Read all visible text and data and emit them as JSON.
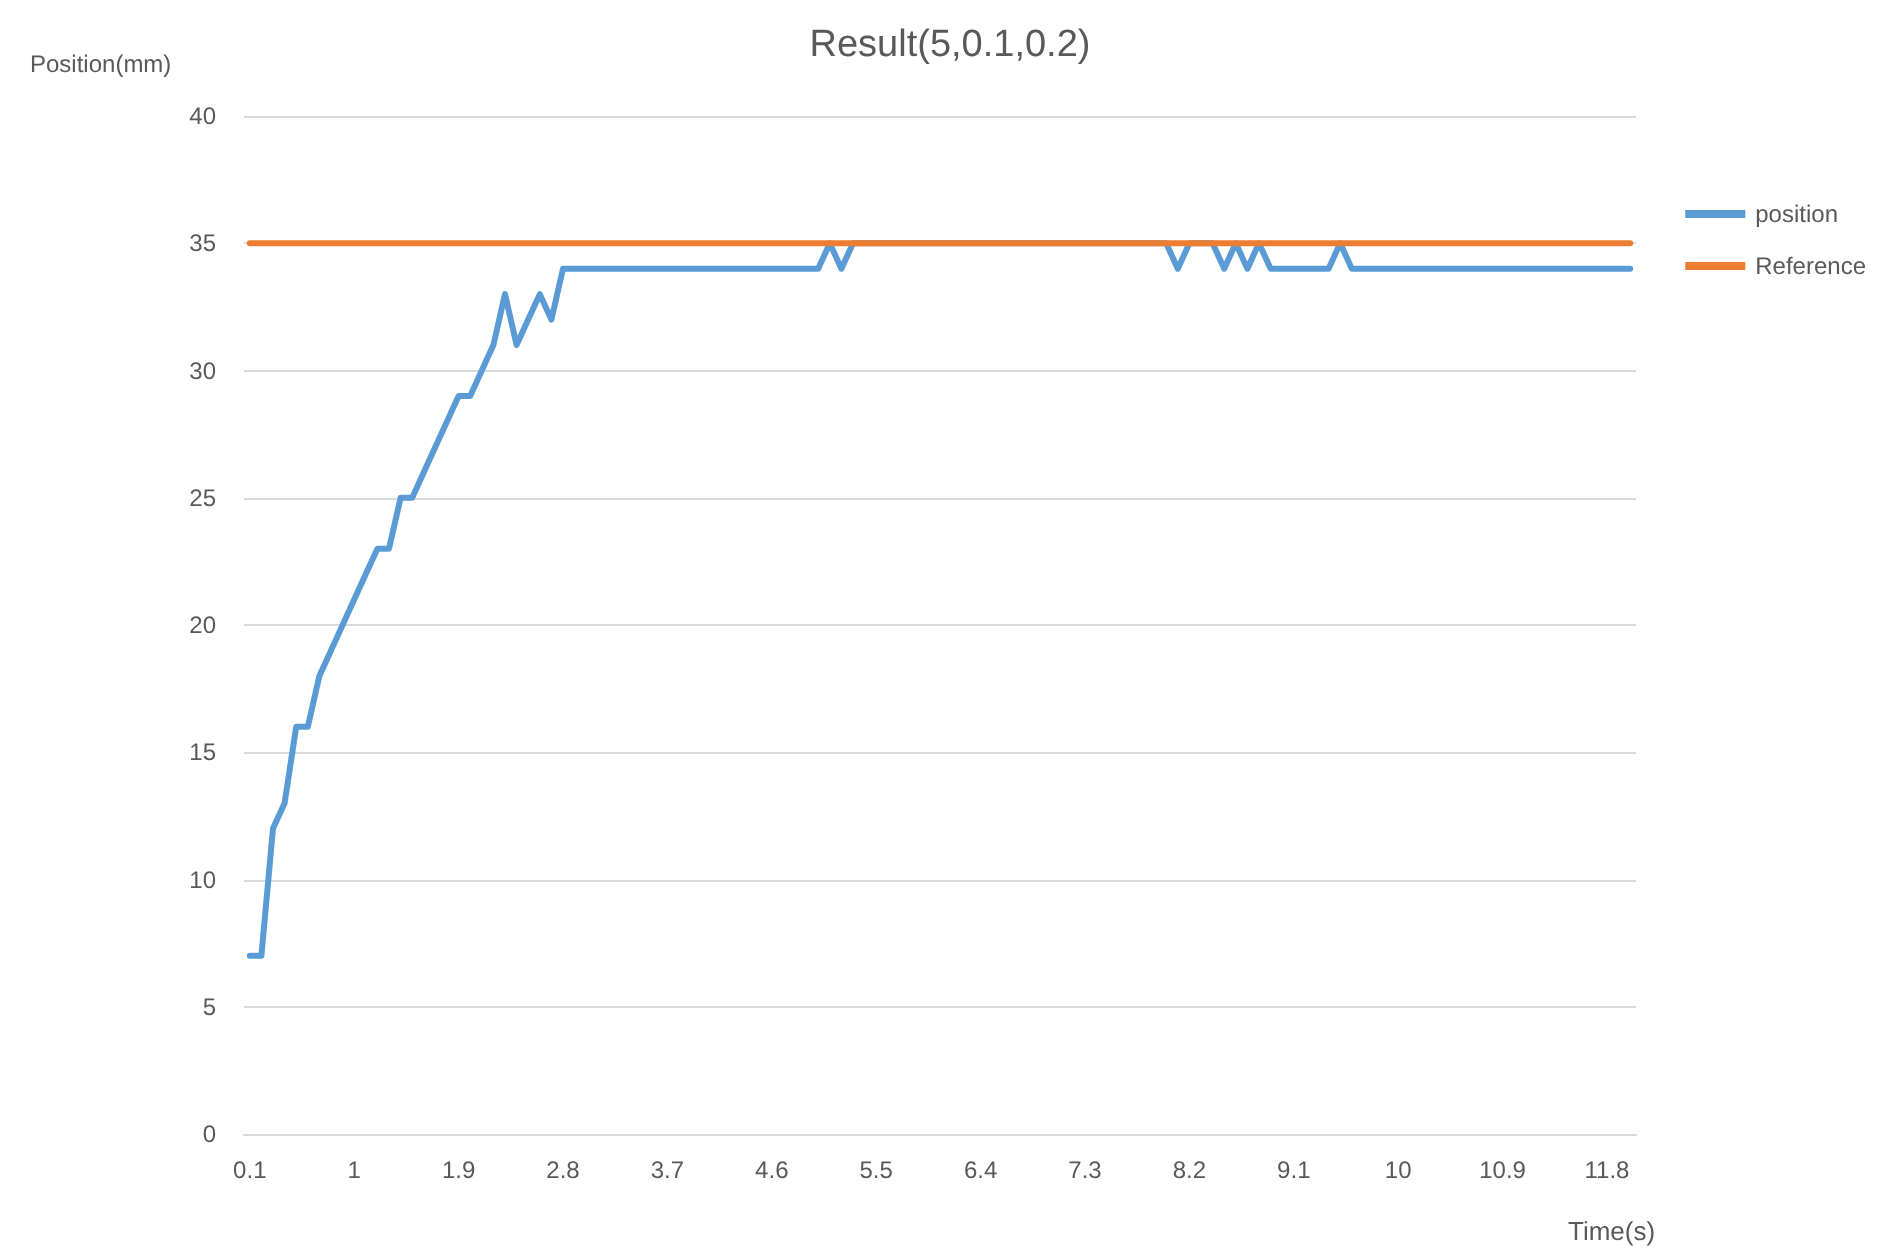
{
  "chart_data": {
    "type": "line",
    "title": "Result(5,0.1,0.2)",
    "xlabel": "Time(s)",
    "ylabel": "Position(mm)",
    "xlim": [
      0.05,
      12.05
    ],
    "xticks": [
      0.1,
      1,
      1.9,
      2.8,
      3.7,
      4.6,
      5.5,
      6.4,
      7.3,
      8.2,
      9.1,
      10,
      10.9,
      11.8
    ],
    "ylim": [
      0,
      40
    ],
    "yticks": [
      0,
      5,
      10,
      15,
      20,
      25,
      30,
      35,
      40
    ],
    "grid": "y",
    "legend": "right",
    "marker": "none",
    "line_style": "solid",
    "series": [
      {
        "name": "position",
        "color": "#5b9bd5",
        "x": [
          0.1,
          0.2,
          0.3,
          0.4,
          0.5,
          0.6,
          0.7,
          0.8,
          0.9,
          1.0,
          1.1,
          1.2,
          1.3,
          1.4,
          1.5,
          1.6,
          1.7,
          1.8,
          1.9,
          2.0,
          2.1,
          2.2,
          2.3,
          2.4,
          2.5,
          2.6,
          2.7,
          2.8,
          5.0,
          5.1,
          5.2,
          5.3,
          8.0,
          8.1,
          8.2,
          8.4,
          8.5,
          8.6,
          8.7,
          8.8,
          8.9,
          9.4,
          9.5,
          9.6,
          12.0
        ],
        "values": [
          7,
          7,
          12,
          13,
          16,
          16,
          18,
          19,
          20,
          21,
          22,
          23,
          23,
          25,
          25,
          26,
          27,
          28,
          29,
          29,
          30,
          31,
          33,
          31,
          32,
          33,
          32,
          34,
          34,
          35,
          34,
          35,
          35,
          34,
          35,
          35,
          34,
          35,
          34,
          35,
          34,
          34,
          35,
          34,
          34
        ]
      },
      {
        "name": "Reference",
        "color": "#ed7d31",
        "x": [
          0.1,
          12.0
        ],
        "values": [
          35,
          35
        ]
      }
    ]
  }
}
